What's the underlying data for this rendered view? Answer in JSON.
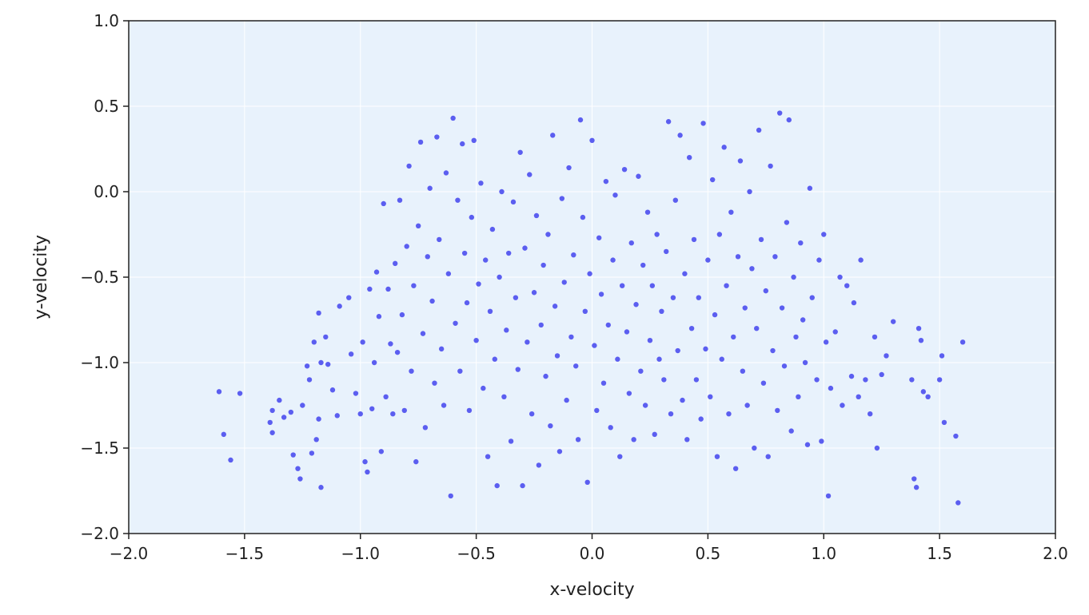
{
  "chart_data": {
    "type": "scatter",
    "title": "",
    "xlabel": "x-velocity",
    "ylabel": "y-velocity",
    "xlim": [
      -2.0,
      2.0
    ],
    "ylim": [
      -2.0,
      1.0
    ],
    "xticks": [
      -2.0,
      -1.5,
      -1.0,
      -0.5,
      0.0,
      0.5,
      1.0,
      1.5,
      2.0
    ],
    "yticks": [
      -2.0,
      -1.5,
      -1.0,
      -0.5,
      0.0,
      0.5,
      1.0
    ],
    "xtick_labels": [
      "−2.0",
      "−1.5",
      "−1.0",
      "−0.5",
      "0.0",
      "0.5",
      "1.0",
      "1.5",
      "2.0"
    ],
    "ytick_labels": [
      "−2.0",
      "−1.5",
      "−1.0",
      "−0.5",
      "0.0",
      "0.5",
      "1.0"
    ],
    "grid": true,
    "colors": {
      "points": "#5b5ef0",
      "plot_background": "#e8f2fc",
      "grid": "#ffffff",
      "spine": "#222222"
    },
    "points": [
      [
        -1.61,
        -1.17
      ],
      [
        -1.59,
        -1.42
      ],
      [
        -1.56,
        -1.57
      ],
      [
        -1.52,
        -1.18
      ],
      [
        -1.39,
        -1.35
      ],
      [
        -1.38,
        -1.41
      ],
      [
        -1.38,
        -1.28
      ],
      [
        -1.35,
        -1.22
      ],
      [
        -1.33,
        -1.32
      ],
      [
        -1.3,
        -1.29
      ],
      [
        -1.29,
        -1.54
      ],
      [
        -1.27,
        -1.62
      ],
      [
        -1.26,
        -1.68
      ],
      [
        -1.25,
        -1.25
      ],
      [
        -1.22,
        -1.1
      ],
      [
        -1.21,
        -1.53
      ],
      [
        -1.19,
        -1.45
      ],
      [
        -1.18,
        -1.33
      ],
      [
        -1.17,
        -1.73
      ],
      [
        -1.17,
        -1.0
      ],
      [
        -1.15,
        -0.85
      ],
      [
        -1.14,
        -1.01
      ],
      [
        -1.12,
        -1.16
      ],
      [
        -1.18,
        -0.71
      ],
      [
        -1.2,
        -0.88
      ],
      [
        -1.23,
        -1.02
      ],
      [
        -1.1,
        -1.31
      ],
      [
        -1.09,
        -0.67
      ],
      [
        -1.05,
        -0.62
      ],
      [
        -1.04,
        -0.95
      ],
      [
        -1.02,
        -1.18
      ],
      [
        -1.0,
        -1.3
      ],
      [
        -0.99,
        -0.88
      ],
      [
        -0.98,
        -1.58
      ],
      [
        -0.97,
        -1.64
      ],
      [
        -0.96,
        -0.57
      ],
      [
        -0.95,
        -1.27
      ],
      [
        -0.94,
        -1.0
      ],
      [
        -0.93,
        -0.47
      ],
      [
        -0.92,
        -0.73
      ],
      [
        -0.91,
        -1.52
      ],
      [
        -0.9,
        -0.07
      ],
      [
        -0.89,
        -1.2
      ],
      [
        -0.88,
        -0.57
      ],
      [
        -0.87,
        -0.89
      ],
      [
        -0.86,
        -1.3
      ],
      [
        -0.85,
        -0.42
      ],
      [
        -0.84,
        -0.94
      ],
      [
        -0.83,
        -0.05
      ],
      [
        -0.82,
        -0.72
      ],
      [
        -0.81,
        -1.28
      ],
      [
        -0.8,
        -0.32
      ],
      [
        -0.79,
        0.15
      ],
      [
        -0.78,
        -1.05
      ],
      [
        -0.77,
        -0.55
      ],
      [
        -0.76,
        -1.58
      ],
      [
        -0.75,
        -0.2
      ],
      [
        -0.74,
        0.29
      ],
      [
        -0.73,
        -0.83
      ],
      [
        -0.72,
        -1.38
      ],
      [
        -0.71,
        -0.38
      ],
      [
        -0.7,
        0.02
      ],
      [
        -0.69,
        -0.64
      ],
      [
        -0.68,
        -1.12
      ],
      [
        -0.67,
        0.32
      ],
      [
        -0.66,
        -0.28
      ],
      [
        -0.65,
        -0.92
      ],
      [
        -0.64,
        -1.25
      ],
      [
        -0.63,
        0.11
      ],
      [
        -0.62,
        -0.48
      ],
      [
        -0.61,
        -1.78
      ],
      [
        -0.6,
        0.43
      ],
      [
        -0.59,
        -0.77
      ],
      [
        -0.58,
        -0.05
      ],
      [
        -0.57,
        -1.05
      ],
      [
        -0.56,
        0.28
      ],
      [
        -0.55,
        -0.36
      ],
      [
        -0.54,
        -0.65
      ],
      [
        -0.53,
        -1.28
      ],
      [
        -0.52,
        -0.15
      ],
      [
        -0.51,
        0.3
      ],
      [
        -0.5,
        -0.87
      ],
      [
        -0.49,
        -0.54
      ],
      [
        -0.48,
        0.05
      ],
      [
        -0.47,
        -1.15
      ],
      [
        -0.46,
        -0.4
      ],
      [
        -0.45,
        -1.55
      ],
      [
        -0.44,
        -0.7
      ],
      [
        -0.43,
        -0.22
      ],
      [
        -0.42,
        -0.98
      ],
      [
        -0.41,
        -1.72
      ],
      [
        -0.4,
        -0.5
      ],
      [
        -0.39,
        0.0
      ],
      [
        -0.38,
        -1.2
      ],
      [
        -0.37,
        -0.81
      ],
      [
        -0.36,
        -0.36
      ],
      [
        -0.35,
        -1.46
      ],
      [
        -0.34,
        -0.06
      ],
      [
        -0.33,
        -0.62
      ],
      [
        -0.32,
        -1.04
      ],
      [
        -0.31,
        0.23
      ],
      [
        -0.3,
        -1.72
      ],
      [
        -0.29,
        -0.33
      ],
      [
        -0.28,
        -0.88
      ],
      [
        -0.27,
        0.1
      ],
      [
        -0.26,
        -1.3
      ],
      [
        -0.25,
        -0.59
      ],
      [
        -0.24,
        -0.14
      ],
      [
        -0.23,
        -1.6
      ],
      [
        -0.22,
        -0.78
      ],
      [
        -0.21,
        -0.43
      ],
      [
        -0.2,
        -1.08
      ],
      [
        -0.19,
        -0.25
      ],
      [
        -0.18,
        -1.37
      ],
      [
        -0.17,
        0.33
      ],
      [
        -0.16,
        -0.67
      ],
      [
        -0.15,
        -0.96
      ],
      [
        -0.14,
        -1.52
      ],
      [
        -0.13,
        -0.04
      ],
      [
        -0.12,
        -0.53
      ],
      [
        -0.11,
        -1.22
      ],
      [
        -0.1,
        0.14
      ],
      [
        -0.09,
        -0.85
      ],
      [
        -0.08,
        -0.37
      ],
      [
        -0.07,
        -1.02
      ],
      [
        -0.06,
        -1.45
      ],
      [
        -0.05,
        0.42
      ],
      [
        -0.04,
        -0.15
      ],
      [
        -0.03,
        -0.7
      ],
      [
        -0.02,
        -1.7
      ],
      [
        -0.01,
        -0.48
      ],
      [
        0.0,
        0.3
      ],
      [
        0.01,
        -0.9
      ],
      [
        0.02,
        -1.28
      ],
      [
        0.03,
        -0.27
      ],
      [
        0.04,
        -0.6
      ],
      [
        0.05,
        -1.12
      ],
      [
        0.06,
        0.06
      ],
      [
        0.07,
        -0.78
      ],
      [
        0.08,
        -1.38
      ],
      [
        0.09,
        -0.4
      ],
      [
        0.1,
        -0.02
      ],
      [
        0.11,
        -0.98
      ],
      [
        0.12,
        -1.55
      ],
      [
        0.13,
        -0.55
      ],
      [
        0.14,
        0.13
      ],
      [
        0.15,
        -0.82
      ],
      [
        0.16,
        -1.18
      ],
      [
        0.17,
        -0.3
      ],
      [
        0.18,
        -1.45
      ],
      [
        0.19,
        -0.66
      ],
      [
        0.2,
        0.09
      ],
      [
        0.21,
        -1.05
      ],
      [
        0.22,
        -0.43
      ],
      [
        0.23,
        -1.25
      ],
      [
        0.24,
        -0.12
      ],
      [
        0.25,
        -0.87
      ],
      [
        0.26,
        -0.55
      ],
      [
        0.27,
        -1.42
      ],
      [
        0.28,
        -0.25
      ],
      [
        0.29,
        -0.98
      ],
      [
        0.3,
        -0.7
      ],
      [
        0.31,
        -1.1
      ],
      [
        0.32,
        -0.35
      ],
      [
        0.33,
        0.41
      ],
      [
        0.34,
        -1.3
      ],
      [
        0.35,
        -0.62
      ],
      [
        0.36,
        -0.05
      ],
      [
        0.37,
        -0.93
      ],
      [
        0.38,
        0.33
      ],
      [
        0.39,
        -1.22
      ],
      [
        0.4,
        -0.48
      ],
      [
        0.41,
        -1.45
      ],
      [
        0.42,
        0.2
      ],
      [
        0.43,
        -0.8
      ],
      [
        0.44,
        -0.28
      ],
      [
        0.45,
        -1.1
      ],
      [
        0.46,
        -0.62
      ],
      [
        0.47,
        -1.33
      ],
      [
        0.48,
        0.4
      ],
      [
        0.49,
        -0.92
      ],
      [
        0.5,
        -0.4
      ],
      [
        0.51,
        -1.2
      ],
      [
        0.52,
        0.07
      ],
      [
        0.53,
        -0.72
      ],
      [
        0.54,
        -1.55
      ],
      [
        0.55,
        -0.25
      ],
      [
        0.56,
        -0.98
      ],
      [
        0.57,
        0.26
      ],
      [
        0.58,
        -0.55
      ],
      [
        0.59,
        -1.3
      ],
      [
        0.6,
        -0.12
      ],
      [
        0.61,
        -0.85
      ],
      [
        0.62,
        -1.62
      ],
      [
        0.63,
        -0.38
      ],
      [
        0.64,
        0.18
      ],
      [
        0.65,
        -1.05
      ],
      [
        0.66,
        -0.68
      ],
      [
        0.67,
        -1.25
      ],
      [
        0.68,
        0.0
      ],
      [
        0.69,
        -0.45
      ],
      [
        0.7,
        -1.5
      ],
      [
        0.71,
        -0.8
      ],
      [
        0.72,
        0.36
      ],
      [
        0.73,
        -0.28
      ],
      [
        0.74,
        -1.12
      ],
      [
        0.75,
        -0.58
      ],
      [
        0.76,
        -1.55
      ],
      [
        0.77,
        0.15
      ],
      [
        0.78,
        -0.93
      ],
      [
        0.79,
        -0.38
      ],
      [
        0.8,
        -1.28
      ],
      [
        0.81,
        0.46
      ],
      [
        0.82,
        -0.68
      ],
      [
        0.83,
        -1.02
      ],
      [
        0.84,
        -0.18
      ],
      [
        0.85,
        0.42
      ],
      [
        0.86,
        -1.4
      ],
      [
        0.87,
        -0.5
      ],
      [
        0.88,
        -0.85
      ],
      [
        0.89,
        -1.2
      ],
      [
        0.9,
        -0.3
      ],
      [
        0.91,
        -0.75
      ],
      [
        0.92,
        -1.0
      ],
      [
        0.93,
        -1.48
      ],
      [
        0.94,
        0.02
      ],
      [
        0.95,
        -0.62
      ],
      [
        0.97,
        -1.1
      ],
      [
        0.98,
        -0.4
      ],
      [
        0.99,
        -1.46
      ],
      [
        1.0,
        -0.25
      ],
      [
        1.01,
        -0.88
      ],
      [
        1.02,
        -1.78
      ],
      [
        1.03,
        -1.15
      ],
      [
        1.05,
        -0.82
      ],
      [
        1.07,
        -0.5
      ],
      [
        1.08,
        -1.25
      ],
      [
        1.1,
        -0.55
      ],
      [
        1.12,
        -1.08
      ],
      [
        1.13,
        -0.65
      ],
      [
        1.15,
        -1.2
      ],
      [
        1.16,
        -0.4
      ],
      [
        1.18,
        -1.1
      ],
      [
        1.2,
        -1.3
      ],
      [
        1.22,
        -0.85
      ],
      [
        1.23,
        -1.5
      ],
      [
        1.25,
        -1.07
      ],
      [
        1.27,
        -0.96
      ],
      [
        1.3,
        -0.76
      ],
      [
        1.38,
        -1.1
      ],
      [
        1.39,
        -1.68
      ],
      [
        1.4,
        -1.73
      ],
      [
        1.41,
        -0.8
      ],
      [
        1.42,
        -0.87
      ],
      [
        1.43,
        -1.17
      ],
      [
        1.45,
        -1.2
      ],
      [
        1.5,
        -1.1
      ],
      [
        1.51,
        -0.96
      ],
      [
        1.52,
        -1.35
      ],
      [
        1.57,
        -1.43
      ],
      [
        1.58,
        -1.82
      ],
      [
        1.6,
        -0.88
      ]
    ]
  }
}
